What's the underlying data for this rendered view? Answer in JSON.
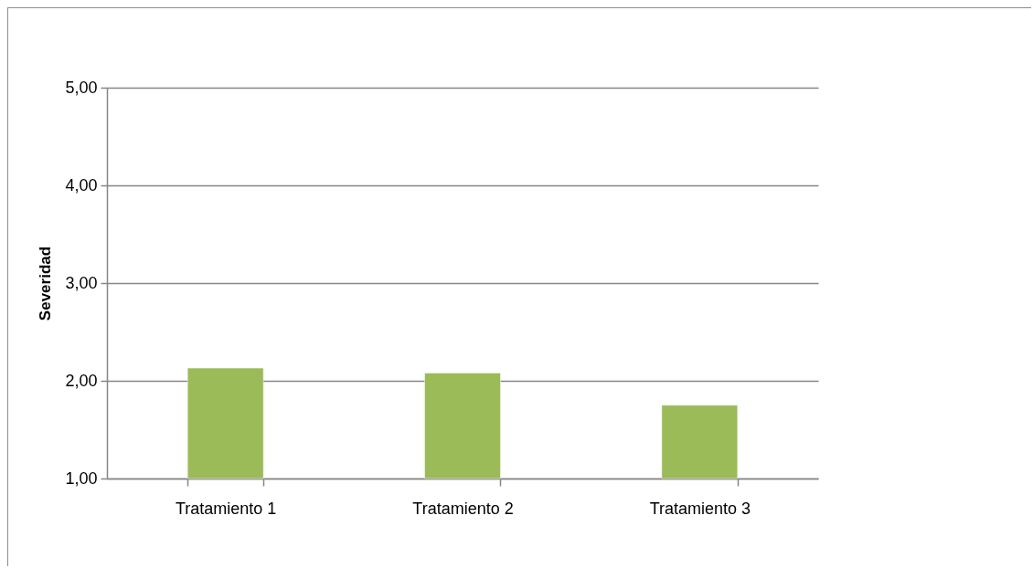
{
  "chart_data": {
    "type": "bar",
    "ylabel": "Severidad",
    "categories": [
      "Tratamiento 1",
      "Tratamiento 2",
      "Tratamiento 3"
    ],
    "values": [
      2.13,
      2.08,
      1.75
    ],
    "color": "#9bbb59",
    "ylim": [
      1,
      5
    ],
    "yticks": [
      {
        "value": 1,
        "label": "1,00"
      },
      {
        "value": 2,
        "label": "2,00"
      },
      {
        "value": 3,
        "label": "3,00"
      },
      {
        "value": 4,
        "label": "4,00"
      },
      {
        "value": 5,
        "label": "5,00"
      }
    ],
    "grid": "y"
  }
}
